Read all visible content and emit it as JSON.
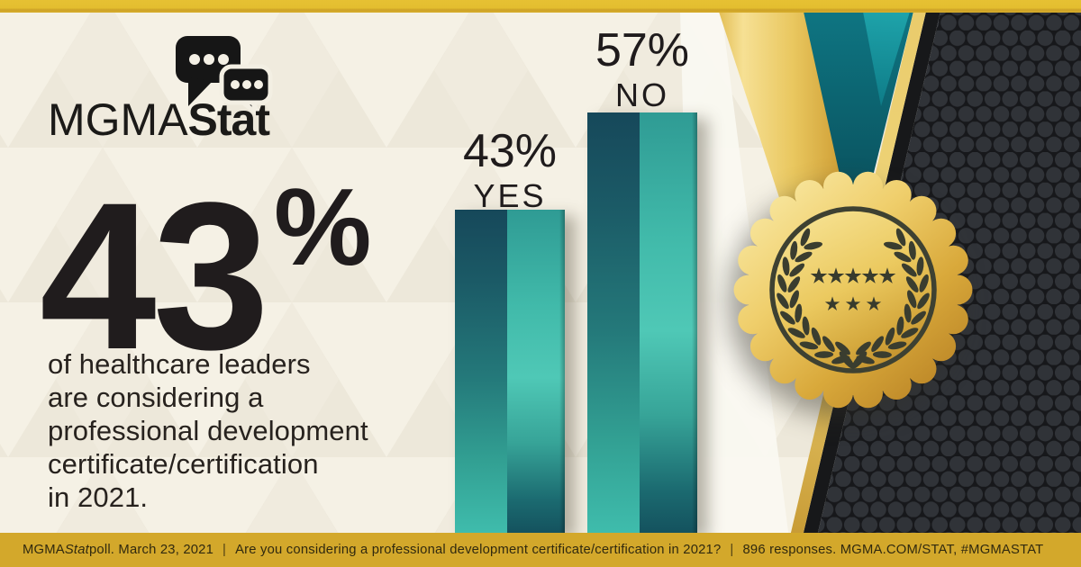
{
  "brand": {
    "logo_mgma": "MGMA",
    "logo_stat": "Stat"
  },
  "headline": {
    "stat_value": "43",
    "stat_percent": "%",
    "lines": [
      "of healthcare leaders",
      "are considering a",
      "professional development",
      "certificate/certification",
      "in 2021."
    ]
  },
  "chart": {
    "bars": [
      {
        "percent_label": "43%",
        "answer_label": "YES"
      },
      {
        "percent_label": "57%",
        "answer_label": "NO"
      }
    ]
  },
  "chart_data": {
    "type": "bar",
    "categories": [
      "YES",
      "NO"
    ],
    "values": [
      43,
      57
    ],
    "unit": "percent",
    "title": "Are you considering a professional development certificate/certification in 2021?",
    "source": "MGMA Stat poll. March 23, 2021",
    "sample_size": "896 responses",
    "ylim": [
      0,
      100
    ],
    "gridlines": false,
    "legend": false,
    "bar_color_dark": "#16485A",
    "bar_color_light": "#3FBCAC"
  },
  "badge": {
    "stars_top_row": 5,
    "stars_bottom_row": 3
  },
  "footer": {
    "brand": "MGMA ",
    "brand_italic": "Stat",
    "poll_date": " poll. March 23, 2021",
    "divider": "|",
    "question": "Are you considering a professional development certificate/certification in 2021?",
    "tail": "896 responses. MGMA.COM/STAT, #MGMASTAT"
  },
  "colors": {
    "gold_top_bar": "#E5BF31",
    "gold_footer": "#D3A82B",
    "teal_bar_dark": "#16485A",
    "teal_bar_light": "#3FBCAC",
    "teal_ribbon": "#0E7582",
    "cream_background": "#F1ECDF",
    "hex_panel": "#17181B",
    "medal_gold": "#E9C75F",
    "ink": "#211D1E"
  }
}
